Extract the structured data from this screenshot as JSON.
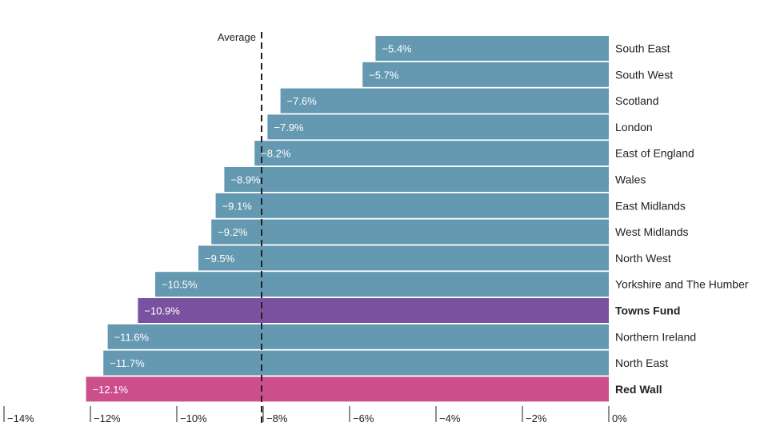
{
  "chart_data": {
    "type": "bar",
    "orientation": "horizontal",
    "categories": [
      "South East",
      "South West",
      "Scotland",
      "London",
      "East of England",
      "Wales",
      "East Midlands",
      "West Midlands",
      "North West",
      "Yorkshire and The Humber",
      "Towns Fund",
      "Northern Ireland",
      "North East",
      "Red Wall"
    ],
    "values": [
      -5.4,
      -5.7,
      -7.6,
      -7.9,
      -8.2,
      -8.9,
      -9.1,
      -9.2,
      -9.5,
      -10.5,
      -10.9,
      -11.6,
      -11.7,
      -12.1
    ],
    "data_labels": [
      "−5.4%",
      "−5.7%",
      "−7.6%",
      "−7.9%",
      "−8.2%",
      "−8.9%",
      "−9.1%",
      "−9.2%",
      "−9.5%",
      "−10.5%",
      "−10.9%",
      "−11.6%",
      "−11.7%",
      "−12.1%"
    ],
    "highlight": {
      "Towns Fund": "#7a519f",
      "Red Wall": "#cc4f8c"
    },
    "bold_categories": [
      "Towns Fund",
      "Red Wall"
    ],
    "bar_color": "#6499b1",
    "xlim": [
      -14,
      0
    ],
    "x_ticks": [
      -14,
      -12,
      -10,
      -8,
      -6,
      -4,
      -2,
      0
    ],
    "x_tick_labels": [
      "−14%",
      "−12%",
      "−10%",
      "−8%",
      "−6%",
      "−4%",
      "−2%",
      "0%"
    ],
    "average": {
      "value": -8.0,
      "label": "Average"
    },
    "title": "",
    "xlabel": "",
    "ylabel": "",
    "grid": false,
    "legend": "none"
  }
}
